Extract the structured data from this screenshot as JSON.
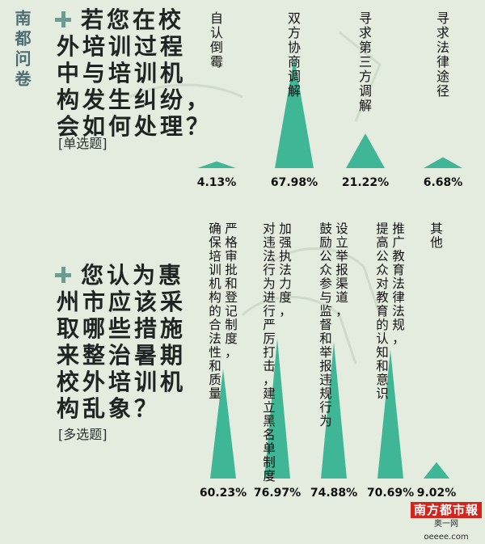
{
  "side_title": "南都问卷",
  "brand": {
    "logo_main": "南方都市報",
    "logo_sub": "奥一网 oeeee.com"
  },
  "colors": {
    "triangle": "#3fb796",
    "background": "#e3ecdf",
    "label": "#111111"
  },
  "questions": [
    {
      "lines": [
        "若您在校",
        "外培训过程",
        "中与培训机",
        "构发生纠纷，",
        "会如何处理？"
      ],
      "type": "[单选题]"
    },
    {
      "lines": [
        "您认为惠",
        "州市应该采",
        "取哪些措施",
        "来整治暑期",
        "校外培训机",
        "构乱象？"
      ],
      "type": "[多选题]"
    }
  ],
  "chart_data": [
    {
      "type": "bar",
      "mark": "triangle",
      "categories": [
        "自认倒霉",
        "双方协商调解",
        "寻求第三方调解",
        "寻求法律途径"
      ],
      "values": [
        4.13,
        67.98,
        21.22,
        6.68
      ],
      "value_labels": [
        "4.13%",
        "67.98%",
        "21.22%",
        "6.68%"
      ],
      "unit": "%"
    },
    {
      "type": "bar",
      "mark": "triangle",
      "categories": [
        [
          "严格审批和登记制度，",
          "确保培训机构的合法性和质量"
        ],
        [
          "加强执法力度，",
          "对违法行为进行严厉打击，建立黑名单制度"
        ],
        [
          "设立举报渠道，",
          "鼓励公众参与监督和举报违规行为"
        ],
        [
          "推广教育法律法规，",
          "提高公众对教育的认知和意识"
        ],
        [
          "其他"
        ]
      ],
      "values": [
        60.23,
        76.97,
        74.88,
        70.69,
        9.02
      ],
      "value_labels": [
        "60.23%",
        "76.97%",
        "74.88%",
        "70.69%",
        "9.02%"
      ],
      "unit": "%"
    }
  ]
}
